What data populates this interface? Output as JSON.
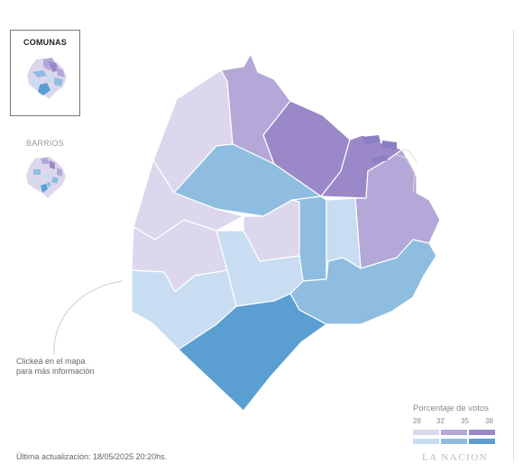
{
  "toggles": {
    "comunas_label": "COMUNAS",
    "barrios_label": "BARRIOS"
  },
  "colors": {
    "purple_light": "#dcd7ec",
    "purple_mid": "#b3a8d8",
    "purple_dark": "#9b88c9",
    "blue_light": "#c8ddf1",
    "blue_mid": "#8fbde0",
    "blue_dark": "#5a9ed2"
  },
  "comunas": [
    {
      "id": "1",
      "fill": "purple_mid"
    },
    {
      "id": "2",
      "fill": "purple_dark"
    },
    {
      "id": "3",
      "fill": "blue_light"
    },
    {
      "id": "4",
      "fill": "blue_mid"
    },
    {
      "id": "5",
      "fill": "blue_mid"
    },
    {
      "id": "6",
      "fill": "purple_light"
    },
    {
      "id": "7",
      "fill": "blue_light"
    },
    {
      "id": "8",
      "fill": "blue_dark"
    },
    {
      "id": "9",
      "fill": "blue_light"
    },
    {
      "id": "10",
      "fill": "purple_light"
    },
    {
      "id": "11",
      "fill": "purple_light"
    },
    {
      "id": "12",
      "fill": "purple_light"
    },
    {
      "id": "13",
      "fill": "purple_mid"
    },
    {
      "id": "14",
      "fill": "purple_dark"
    },
    {
      "id": "15",
      "fill": "blue_mid"
    }
  ],
  "hint": {
    "line1": "Clickeá en el mapa",
    "line2": "para más información"
  },
  "legend": {
    "title": "Porcentaje de votos",
    "ticks": [
      "28",
      "32",
      "35",
      "38"
    ],
    "purple_row": [
      "purple_light",
      "purple_mid",
      "purple_dark"
    ],
    "blue_row": [
      "blue_light",
      "blue_mid",
      "blue_dark"
    ]
  },
  "footer": {
    "updated": "Última actualización: 18/05/2025 20:20hs.",
    "brand": "LA NACION"
  }
}
